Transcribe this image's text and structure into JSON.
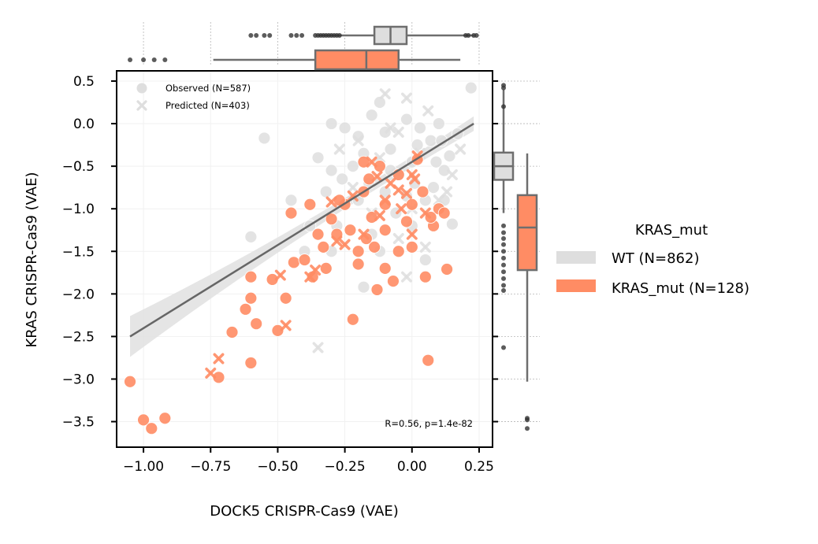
{
  "chart_data": {
    "type": "scatter",
    "xlabel": "DOCK5 CRISPR-Cas9 (VAE)",
    "ylabel": "KRAS CRISPR-Cas9 (VAE)",
    "xlim": [
      -1.1,
      0.3
    ],
    "ylim": [
      -3.8,
      0.62
    ],
    "xticks": [
      -1.0,
      -0.75,
      -0.5,
      -0.25,
      0.0,
      0.25
    ],
    "xtick_labels": [
      "−1.00",
      "−0.75",
      "−0.50",
      "−0.25",
      "0.00",
      "0.25"
    ],
    "yticks": [
      0.5,
      0.0,
      -0.5,
      -1.0,
      -1.5,
      -2.0,
      -2.5,
      -3.0,
      -3.5
    ],
    "ytick_labels": [
      "0.5",
      "0.0",
      "−0.5",
      "−1.0",
      "−1.5",
      "−2.0",
      "−2.5",
      "−3.0",
      "−3.5"
    ],
    "marker_legend": [
      "Observed (N=587)",
      "Predicted (N=403)"
    ],
    "annotation": "R=0.56, p=1.4e-82",
    "legend": {
      "title": "KRAS_mut",
      "entries": [
        "WT (N=862)",
        "KRAS_mut (N=128)"
      ]
    },
    "colors": {
      "wt": "#dedede",
      "mut": "#ff8c64",
      "line": "#666666",
      "box_edge": "#6e6e6e"
    },
    "regression": {
      "x": [
        -1.05,
        0.23
      ],
      "y": [
        -2.5,
        0.0
      ]
    },
    "series": [
      {
        "name": "WT (N=862)",
        "observed": [
          [
            -0.55,
            -0.17
          ],
          [
            -0.6,
            -1.33
          ],
          [
            0.22,
            0.42
          ],
          [
            0.17,
            -0.12
          ],
          [
            0.14,
            -0.38
          ],
          [
            0.12,
            -0.55
          ],
          [
            0.15,
            -1.18
          ],
          [
            -0.18,
            -1.92
          ],
          [
            -0.3,
            -1.5
          ],
          [
            -0.28,
            -1.2
          ],
          [
            -0.35,
            -0.4
          ],
          [
            -0.25,
            -0.05
          ],
          [
            -0.2,
            -0.9
          ],
          [
            -0.15,
            -1.3
          ],
          [
            -0.05,
            -0.6
          ],
          [
            0.02,
            -0.25
          ],
          [
            0.05,
            -0.9
          ],
          [
            -0.1,
            -0.1
          ],
          [
            -0.12,
            -1.5
          ],
          [
            0.0,
            -1.2
          ],
          [
            -0.08,
            -0.3
          ],
          [
            0.08,
            -0.75
          ],
          [
            -0.22,
            -0.5
          ],
          [
            -0.32,
            -0.8
          ],
          [
            -0.4,
            -1.5
          ],
          [
            -0.02,
            0.05
          ],
          [
            0.1,
            0.0
          ],
          [
            -0.15,
            0.1
          ],
          [
            -0.3,
            0.0
          ],
          [
            0.05,
            -1.6
          ],
          [
            -0.45,
            -0.9
          ],
          [
            -0.18,
            -0.35
          ],
          [
            0.0,
            -0.45
          ],
          [
            -0.1,
            -0.8
          ],
          [
            0.03,
            -0.05
          ],
          [
            -0.26,
            -0.65
          ],
          [
            0.12,
            -0.9
          ],
          [
            -0.06,
            -1.05
          ],
          [
            -0.38,
            -1.2
          ],
          [
            -0.02,
            -0.85
          ],
          [
            0.07,
            -0.2
          ],
          [
            -0.12,
            0.25
          ],
          [
            -0.2,
            -0.15
          ],
          [
            0.09,
            -0.45
          ],
          [
            -0.16,
            -0.7
          ],
          [
            0.01,
            -0.7
          ],
          [
            -0.3,
            -0.55
          ],
          [
            -0.08,
            -0.55
          ],
          [
            -0.25,
            -0.95
          ],
          [
            0.11,
            -0.2
          ]
        ],
        "predicted": [
          [
            -0.1,
            0.35
          ],
          [
            -0.02,
            0.3
          ],
          [
            -0.35,
            -2.63
          ],
          [
            -0.02,
            -1.8
          ],
          [
            0.05,
            -1.45
          ],
          [
            0.1,
            -0.9
          ],
          [
            0.15,
            -0.6
          ],
          [
            -0.05,
            -0.1
          ],
          [
            -0.2,
            -0.2
          ],
          [
            0.0,
            -1.0
          ],
          [
            -0.12,
            -0.4
          ],
          [
            0.18,
            -0.3
          ],
          [
            -0.27,
            -0.3
          ],
          [
            -0.08,
            -0.05
          ],
          [
            0.06,
            0.15
          ],
          [
            -0.15,
            -1.05
          ],
          [
            0.03,
            -0.35
          ],
          [
            -0.22,
            -0.75
          ],
          [
            0.13,
            -0.8
          ],
          [
            -0.05,
            -1.35
          ]
        ]
      },
      {
        "name": "KRAS_mut (N=128)",
        "observed": [
          [
            -1.05,
            -3.03
          ],
          [
            -1.0,
            -3.48
          ],
          [
            -0.97,
            -3.58
          ],
          [
            -0.92,
            -3.46
          ],
          [
            -0.72,
            -2.98
          ],
          [
            -0.6,
            -2.81
          ],
          [
            -0.67,
            -2.45
          ],
          [
            -0.58,
            -2.35
          ],
          [
            -0.62,
            -2.18
          ],
          [
            -0.5,
            -2.43
          ],
          [
            -0.6,
            -2.05
          ],
          [
            -0.22,
            -2.3
          ],
          [
            -0.52,
            -1.83
          ],
          [
            -0.47,
            -2.05
          ],
          [
            -0.6,
            -1.8
          ],
          [
            -0.44,
            -1.63
          ],
          [
            -0.37,
            -1.8
          ],
          [
            -0.45,
            -1.05
          ],
          [
            -0.38,
            -0.95
          ],
          [
            -0.35,
            -1.3
          ],
          [
            -0.3,
            -1.12
          ],
          [
            -0.23,
            -1.25
          ],
          [
            -0.2,
            -1.65
          ],
          [
            -0.14,
            -1.45
          ],
          [
            -0.1,
            -1.7
          ],
          [
            -0.05,
            -1.5
          ],
          [
            0.0,
            -1.45
          ],
          [
            0.05,
            -1.8
          ],
          [
            0.08,
            -1.2
          ],
          [
            0.1,
            -1.0
          ],
          [
            0.12,
            -1.05
          ],
          [
            0.07,
            -1.1
          ],
          [
            0.06,
            -2.78
          ],
          [
            0.13,
            -1.71
          ],
          [
            -0.18,
            -0.45
          ],
          [
            -0.12,
            -0.5
          ],
          [
            -0.18,
            -0.8
          ],
          [
            -0.16,
            -0.65
          ],
          [
            -0.05,
            -0.6
          ],
          [
            0.02,
            -0.42
          ],
          [
            -0.15,
            -1.1
          ],
          [
            -0.25,
            -0.95
          ],
          [
            -0.28,
            -1.3
          ],
          [
            -0.2,
            -1.5
          ],
          [
            -0.32,
            -1.7
          ],
          [
            -0.4,
            -1.6
          ],
          [
            -0.1,
            -1.25
          ],
          [
            0.0,
            -0.95
          ],
          [
            -0.07,
            -1.85
          ],
          [
            -0.17,
            -1.35
          ],
          [
            -0.02,
            -1.15
          ],
          [
            0.04,
            -0.8
          ],
          [
            -0.33,
            -1.45
          ],
          [
            -0.27,
            -0.9
          ],
          [
            -0.1,
            -0.95
          ],
          [
            -0.13,
            -1.95
          ]
        ],
        "predicted": [
          [
            -0.75,
            -2.93
          ],
          [
            -0.72,
            -2.76
          ],
          [
            -0.47,
            -2.37
          ],
          [
            -0.49,
            -1.78
          ],
          [
            -0.38,
            -1.8
          ],
          [
            -0.36,
            -1.72
          ],
          [
            -0.3,
            -0.92
          ],
          [
            -0.28,
            -1.38
          ],
          [
            -0.25,
            -1.42
          ],
          [
            -0.15,
            -0.45
          ],
          [
            -0.1,
            -0.9
          ],
          [
            -0.02,
            -0.82
          ],
          [
            0.0,
            -0.6
          ],
          [
            0.02,
            -0.38
          ],
          [
            -0.12,
            -1.08
          ],
          [
            -0.05,
            -0.78
          ],
          [
            0.05,
            -1.05
          ],
          [
            -0.18,
            -1.3
          ],
          [
            0.0,
            -1.3
          ],
          [
            -0.08,
            -0.7
          ],
          [
            -0.22,
            -0.85
          ],
          [
            0.01,
            -0.65
          ],
          [
            -0.04,
            -1.0
          ],
          [
            -0.13,
            -0.62
          ]
        ]
      }
    ],
    "marginal_x": [
      {
        "name": "WT",
        "whisker_low": -0.35,
        "q1": -0.14,
        "median": -0.08,
        "q3": -0.02,
        "whisker_high": 0.23,
        "outliers": [
          -0.6,
          -0.58,
          -0.55,
          -0.53,
          -0.45,
          -0.43,
          -0.41,
          -0.36,
          -0.35,
          -0.34,
          -0.33,
          -0.32,
          -0.31,
          -0.3,
          -0.29,
          -0.28,
          -0.27,
          0.2,
          0.21,
          0.23,
          0.24
        ]
      },
      {
        "name": "KRAS_mut",
        "whisker_low": -0.74,
        "q1": -0.36,
        "median": -0.17,
        "q3": -0.05,
        "whisker_high": 0.18,
        "outliers": [
          -1.05,
          -1.0,
          -0.96,
          -0.92
        ]
      }
    ],
    "marginal_y": [
      {
        "name": "WT",
        "whisker_low": -1.05,
        "q1": -0.66,
        "median": -0.5,
        "q3": -0.34,
        "whisker_high": 0.4,
        "outliers": [
          0.45,
          0.42,
          0.2,
          -1.2,
          -1.28,
          -1.35,
          -1.42,
          -1.5,
          -1.58,
          -1.66,
          -1.74,
          -1.82,
          -1.9,
          -1.96,
          -2.63
        ]
      },
      {
        "name": "KRAS_mut",
        "whisker_low": -3.03,
        "q1": -1.72,
        "median": -1.22,
        "q3": -0.84,
        "whisker_high": -0.35,
        "outliers": [
          -3.46,
          -3.48,
          -3.58
        ]
      }
    ]
  }
}
